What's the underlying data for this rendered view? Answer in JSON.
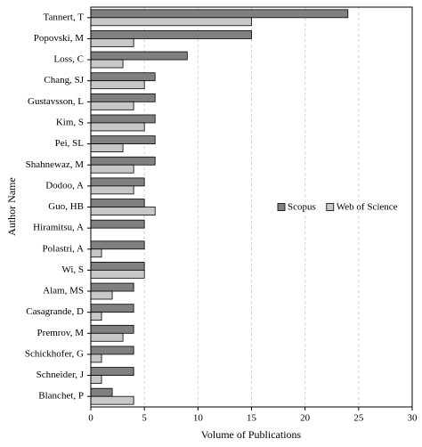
{
  "chart_data": {
    "type": "bar",
    "orientation": "horizontal",
    "x_label": "Volume of Publications",
    "y_label": "Author Name",
    "categories": [
      "Tannert, T",
      "Popovski, M",
      "Loss, C",
      "Chang, SJ",
      "Gustavsson, L",
      "Kim, S",
      "Pei, SL",
      "Shahnewaz, M",
      "Dodoo, A",
      "Guo, HB",
      "Hiramitsu, A",
      "Polastri, A",
      "Wi, S",
      "Alam, MS",
      "Casagrande, D",
      "Premrov, M",
      "Schickhofer, G",
      "Schneider, J",
      "Blanchet, P"
    ],
    "series": [
      {
        "name": "Scopus",
        "color": "#808080",
        "values": [
          24,
          15,
          9,
          6,
          6,
          6,
          6,
          6,
          5,
          5,
          5,
          5,
          5,
          4,
          4,
          4,
          4,
          4,
          2
        ]
      },
      {
        "name": "Web of Science",
        "color": "#c8c8c8",
        "values": [
          15,
          4,
          3,
          5,
          4,
          5,
          3,
          4,
          4,
          6,
          0,
          1,
          5,
          2,
          1,
          3,
          1,
          1,
          4
        ]
      }
    ],
    "xlim": [
      0,
      30
    ],
    "xticks": [
      0,
      5,
      10,
      15,
      20,
      25,
      30
    ],
    "grid": true,
    "legend": "center right"
  }
}
